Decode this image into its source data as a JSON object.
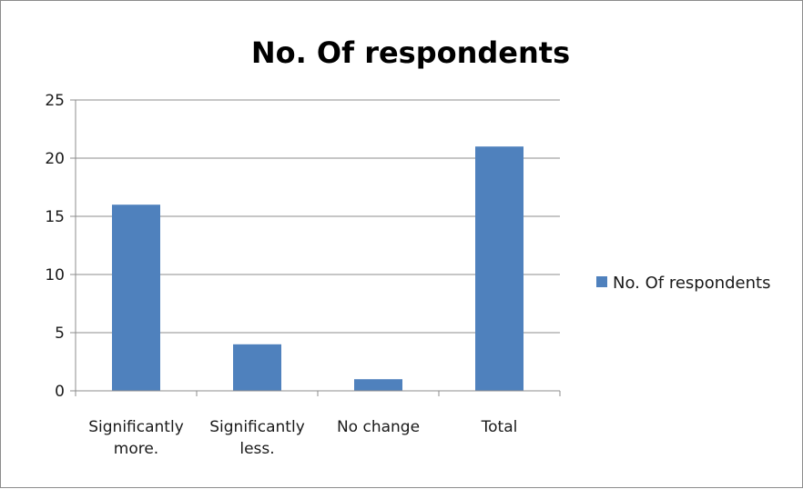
{
  "chart_data": {
    "type": "bar",
    "title": "No. Of respondents",
    "categories": [
      [
        "Significantly",
        "more."
      ],
      [
        "Significantly",
        "less."
      ],
      [
        "No change"
      ],
      [
        "Total"
      ]
    ],
    "series": [
      {
        "name": "No. Of respondents",
        "values": [
          16,
          4,
          1,
          21
        ],
        "color": "#4f81bd"
      }
    ],
    "ylim": [
      0,
      25
    ],
    "yticks": [
      0,
      5,
      10,
      15,
      20,
      25
    ],
    "grid": true,
    "legend": "right",
    "colors": {
      "bar": "#4f81bd",
      "grid": "#8c8c8c",
      "axis": "#8c8c8c"
    }
  }
}
